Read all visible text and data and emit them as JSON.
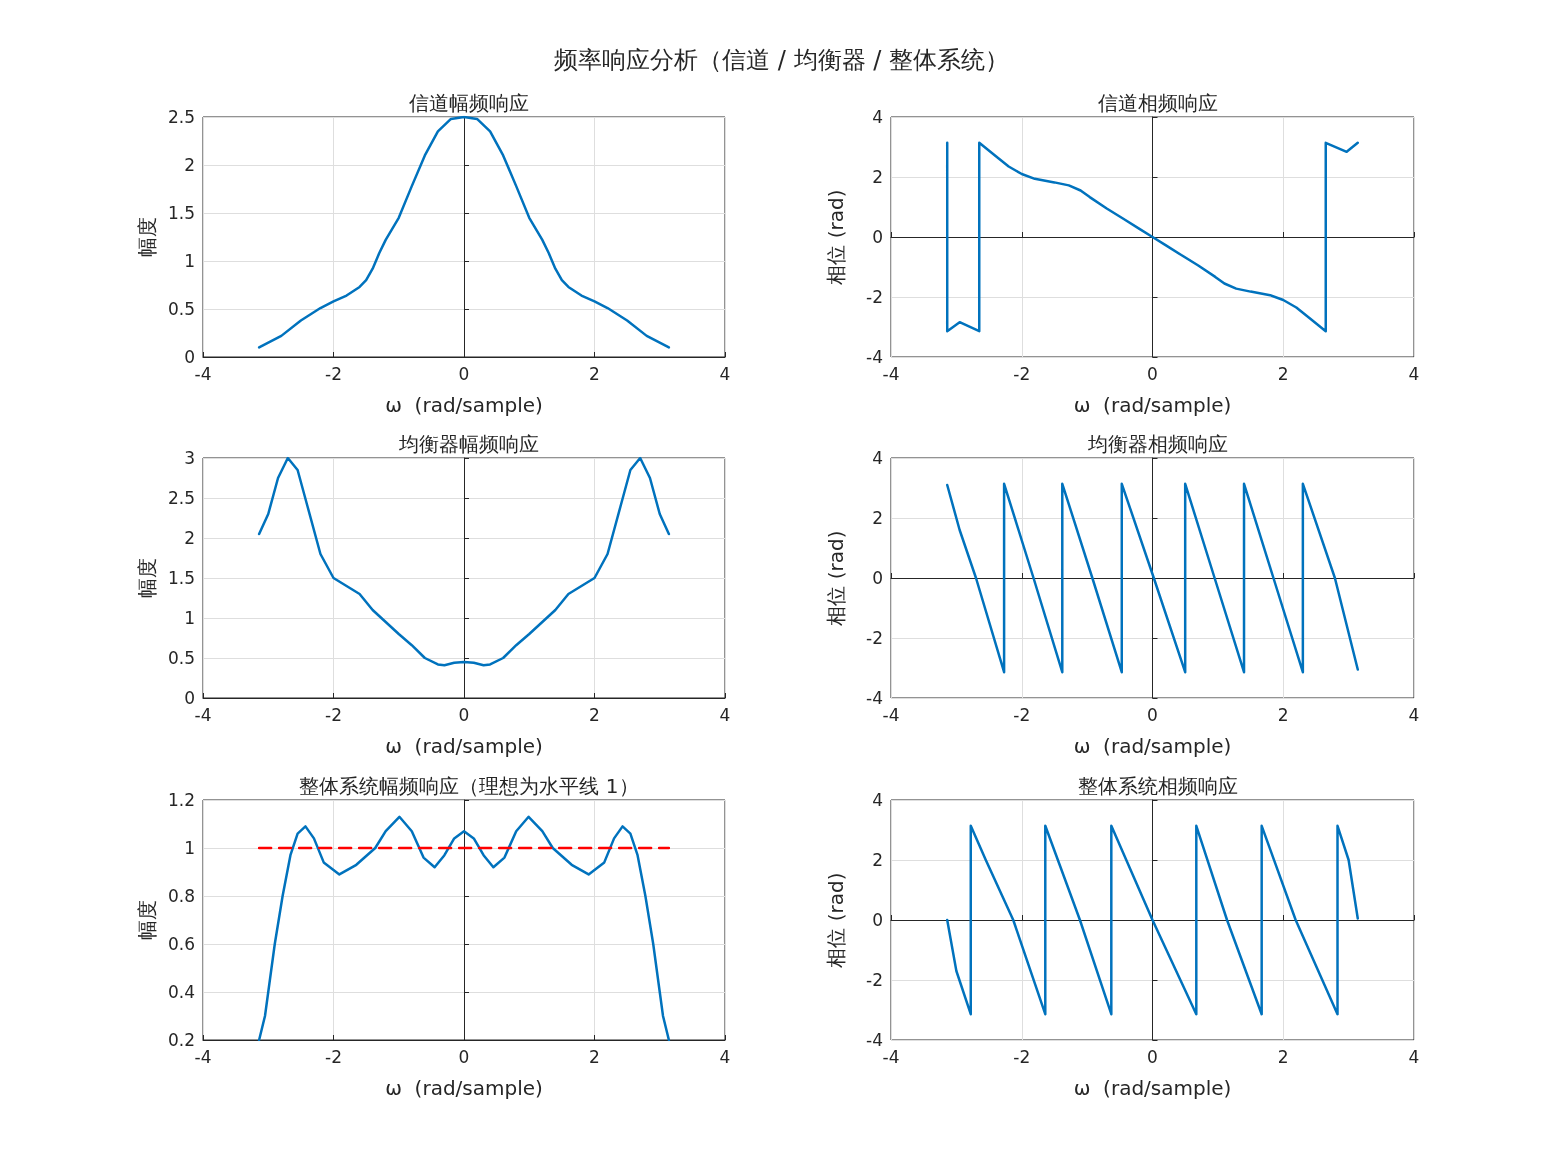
{
  "chart_data": [
    {
      "type": "line",
      "title": "信道幅频响应",
      "annotations": [
        "频率响应分析（信道 / 均衡器 / 整体系统）"
      ],
      "xlabel": "ω  (rad/sample)",
      "ylabel": "幅度",
      "xlim": [
        -4,
        4
      ],
      "xticks": [
        -4,
        -2,
        0,
        2,
        4
      ],
      "ylim": [
        0,
        2.5
      ],
      "yticks": [
        0,
        0.5,
        1,
        1.5,
        2,
        2.5
      ],
      "grid": true,
      "series": [
        {
          "color": "#0072bd",
          "x": [
            -3.14,
            -2.8,
            -2.5,
            -2.2,
            -2.0,
            -1.8,
            -1.6,
            -1.5,
            -1.4,
            -1.3,
            -1.2,
            -1.0,
            -0.8,
            -0.6,
            -0.4,
            -0.2,
            0,
            0.2,
            0.4,
            0.6,
            0.8,
            1.0,
            1.2,
            1.3,
            1.4,
            1.5,
            1.6,
            1.8,
            2.0,
            2.2,
            2.5,
            2.8,
            3.14
          ],
          "values": [
            0.1,
            0.22,
            0.38,
            0.51,
            0.58,
            0.64,
            0.73,
            0.8,
            0.92,
            1.08,
            1.22,
            1.45,
            1.78,
            2.1,
            2.35,
            2.48,
            2.5,
            2.48,
            2.35,
            2.1,
            1.78,
            1.45,
            1.22,
            1.08,
            0.92,
            0.8,
            0.73,
            0.64,
            0.58,
            0.51,
            0.38,
            0.22,
            0.1
          ]
        }
      ]
    },
    {
      "type": "line",
      "title": "信道相频响应",
      "xlabel": "ω  (rad/sample)",
      "ylabel": "相位 (rad)",
      "xlim": [
        -4,
        4
      ],
      "xticks": [
        -4,
        -2,
        0,
        2,
        4
      ],
      "ylim": [
        -4,
        4
      ],
      "yticks": [
        -4,
        -2,
        0,
        2,
        4
      ],
      "grid": true,
      "series": [
        {
          "color": "#0072bd",
          "x": [
            -3.14,
            -3.14,
            -2.95,
            -2.65,
            -2.65,
            -2.4,
            -2.2,
            -2.0,
            -1.8,
            -1.5,
            -1.28,
            -1.1,
            -0.96,
            -0.7,
            -0.44,
            -0.2,
            0,
            0.2,
            0.44,
            0.7,
            0.96,
            1.1,
            1.28,
            1.5,
            1.8,
            2.0,
            2.2,
            2.4,
            2.65,
            2.65,
            2.97,
            3.14
          ],
          "values": [
            3.14,
            -3.14,
            -2.84,
            -3.14,
            3.14,
            2.7,
            2.35,
            2.1,
            1.94,
            1.82,
            1.72,
            1.55,
            1.33,
            0.95,
            0.6,
            0.27,
            0,
            -0.27,
            -0.6,
            -0.95,
            -1.33,
            -1.55,
            -1.72,
            -1.82,
            -1.94,
            -2.1,
            -2.35,
            -2.7,
            -3.14,
            3.14,
            2.84,
            3.14
          ]
        }
      ]
    },
    {
      "type": "line",
      "title": "均衡器幅频响应",
      "xlabel": "ω  (rad/sample)",
      "ylabel": "幅度",
      "xlim": [
        -4,
        4
      ],
      "xticks": [
        -4,
        -2,
        0,
        2,
        4
      ],
      "ylim": [
        0,
        3
      ],
      "yticks": [
        0,
        0.5,
        1,
        1.5,
        2,
        2.5,
        3
      ],
      "grid": true,
      "series": [
        {
          "color": "#0072bd",
          "x": [
            -3.14,
            -3.0,
            -2.85,
            -2.7,
            -2.55,
            -2.4,
            -2.2,
            -2.0,
            -1.8,
            -1.6,
            -1.4,
            -1.2,
            -1.0,
            -0.8,
            -0.6,
            -0.4,
            -0.3,
            -0.15,
            0,
            0.15,
            0.3,
            0.4,
            0.6,
            0.8,
            1.0,
            1.2,
            1.4,
            1.6,
            1.8,
            2.0,
            2.2,
            2.4,
            2.55,
            2.7,
            2.85,
            3.0,
            3.14
          ],
          "values": [
            2.05,
            2.3,
            2.75,
            3.0,
            2.85,
            2.4,
            1.8,
            1.5,
            1.4,
            1.3,
            1.1,
            0.95,
            0.8,
            0.66,
            0.5,
            0.42,
            0.41,
            0.44,
            0.45,
            0.44,
            0.41,
            0.42,
            0.5,
            0.66,
            0.8,
            0.95,
            1.1,
            1.3,
            1.4,
            1.5,
            1.8,
            2.4,
            2.85,
            3.0,
            2.75,
            2.3,
            2.05
          ]
        }
      ]
    },
    {
      "type": "line",
      "title": "均衡器相频响应",
      "xlabel": "ω  (rad/sample)",
      "ylabel": "相位 (rad)",
      "xlim": [
        -4,
        4
      ],
      "xticks": [
        -4,
        -2,
        0,
        2,
        4
      ],
      "ylim": [
        -4,
        4
      ],
      "yticks": [
        -4,
        -2,
        0,
        2,
        4
      ],
      "grid": true,
      "series": [
        {
          "color": "#0072bd",
          "x": [
            -3.14,
            -2.95,
            -2.7,
            -2.27,
            -2.27,
            -1.82,
            -1.38,
            -1.38,
            -0.92,
            -0.47,
            -0.47,
            0.02,
            0.5,
            0.5,
            0.95,
            1.4,
            1.4,
            1.85,
            2.3,
            2.3,
            2.79,
            3.14
          ],
          "values": [
            3.1,
            1.6,
            0,
            -3.14,
            3.14,
            0,
            -3.14,
            3.14,
            0,
            -3.14,
            3.14,
            0,
            -3.14,
            3.14,
            0,
            -3.14,
            3.14,
            0,
            -3.14,
            3.14,
            0,
            -3.05
          ]
        }
      ]
    },
    {
      "type": "line",
      "title": "整体系统幅频响应（理想为水平线 1）",
      "xlabel": "ω  (rad/sample)",
      "ylabel": "幅度",
      "xlim": [
        -4,
        4
      ],
      "xticks": [
        -4,
        -2,
        0,
        2,
        4
      ],
      "ylim": [
        0.2,
        1.2
      ],
      "yticks": [
        0.2,
        0.4,
        0.6,
        0.8,
        1,
        1.2
      ],
      "grid": true,
      "series": [
        {
          "color": "#0072bd",
          "x": [
            -3.14,
            -3.05,
            -3.0,
            -2.9,
            -2.78,
            -2.66,
            -2.55,
            -2.43,
            -2.3,
            -2.15,
            -1.91,
            -1.65,
            -1.36,
            -1.2,
            -0.99,
            -0.8,
            -0.62,
            -0.45,
            -0.3,
            -0.15,
            0,
            0.15,
            0.3,
            0.45,
            0.62,
            0.8,
            0.99,
            1.2,
            1.36,
            1.65,
            1.91,
            2.15,
            2.3,
            2.43,
            2.55,
            2.66,
            2.78,
            2.9,
            3.0,
            3.05,
            3.14
          ],
          "values": [
            0.2,
            0.3,
            0.4,
            0.6,
            0.8,
            0.97,
            1.06,
            1.09,
            1.04,
            0.94,
            0.89,
            0.93,
            1.0,
            1.07,
            1.13,
            1.07,
            0.96,
            0.92,
            0.97,
            1.04,
            1.07,
            1.04,
            0.97,
            0.92,
            0.96,
            1.07,
            1.13,
            1.07,
            1.0,
            0.93,
            0.89,
            0.94,
            1.04,
            1.09,
            1.06,
            0.97,
            0.8,
            0.6,
            0.4,
            0.3,
            0.2
          ]
        },
        {
          "color": "#ff0000",
          "line_style": "dashed",
          "x": [
            -3.14,
            3.14
          ],
          "values": [
            1,
            1
          ]
        }
      ]
    },
    {
      "type": "line",
      "title": "整体系统相频响应",
      "xlabel": "ω  (rad/sample)",
      "ylabel": "相位 (rad)",
      "xlim": [
        -4,
        4
      ],
      "xticks": [
        -4,
        -2,
        0,
        2,
        4
      ],
      "ylim": [
        -4,
        4
      ],
      "yticks": [
        -4,
        -2,
        0,
        2,
        4
      ],
      "grid": true,
      "series": [
        {
          "color": "#0072bd",
          "x": [
            -3.14,
            -3.0,
            -2.78,
            -2.78,
            -2.55,
            -2.13,
            -1.64,
            -1.64,
            -1.11,
            -0.63,
            -0.63,
            0,
            0.67,
            0.67,
            1.14,
            1.67,
            1.67,
            2.19,
            2.83,
            2.83,
            3.0,
            3.14
          ],
          "values": [
            0,
            -1.7,
            -3.14,
            3.14,
            2.0,
            0,
            -3.14,
            3.14,
            0,
            -3.14,
            3.14,
            0,
            -3.14,
            3.14,
            0,
            -3.14,
            3.14,
            0,
            -3.14,
            3.14,
            2.0,
            0.05
          ]
        }
      ]
    }
  ]
}
